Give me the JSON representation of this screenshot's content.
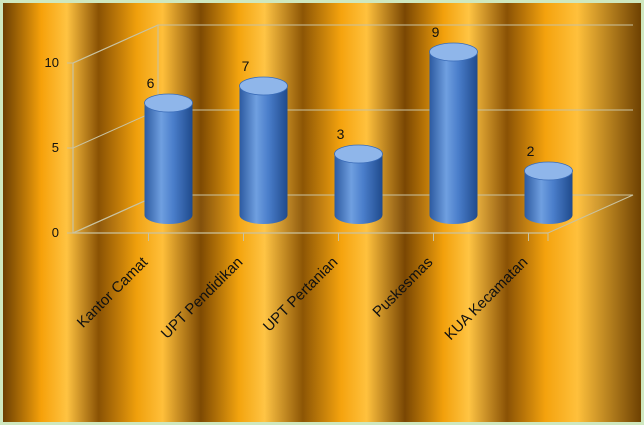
{
  "chart_data": {
    "type": "bar",
    "style": "3d-cylinder",
    "categories": [
      "Kantor Camat",
      "UPT Pendidikan",
      "UPT Pertanian",
      "Puskesmas",
      "KUA Kecamatan"
    ],
    "values": [
      6,
      7,
      3,
      9,
      2
    ],
    "ylim": [
      0,
      10
    ],
    "yticks": [
      0,
      5,
      10
    ],
    "grid": true,
    "legend": "none",
    "colors": {
      "bar": "#4a7ecb",
      "bar_dark": "#1f4a8c",
      "bar_light": "#8fb6ea",
      "grid": "#c9c2a0"
    }
  }
}
